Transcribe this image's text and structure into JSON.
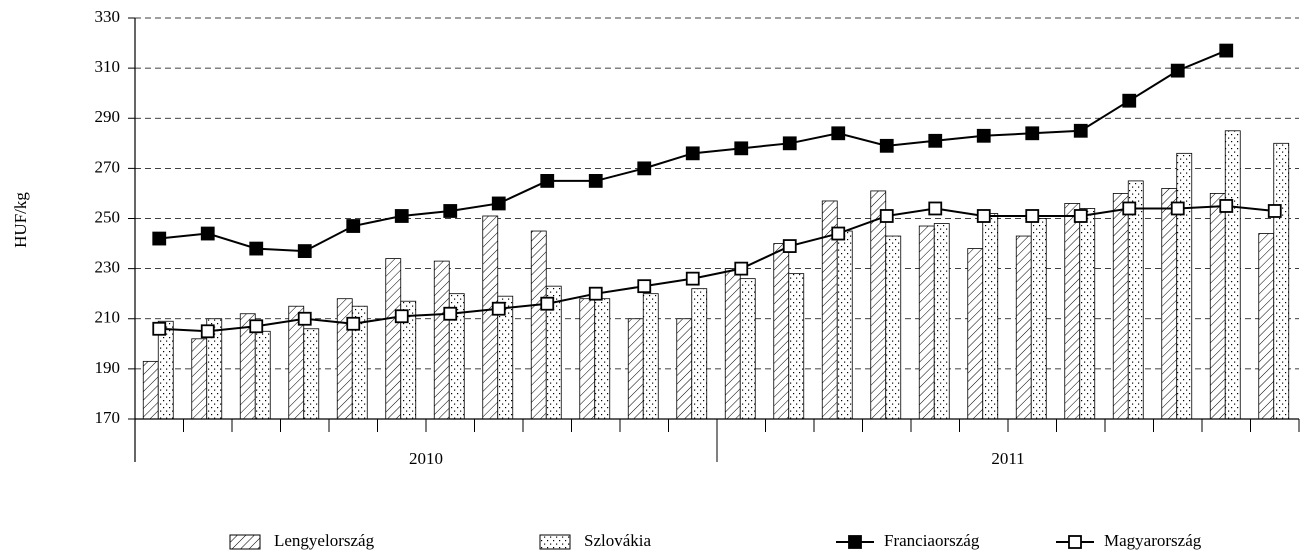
{
  "chart_data": {
    "type": "bar_line",
    "y_axis_label": "HUF/kg",
    "categories": [
      null,
      null,
      null,
      null,
      null,
      null,
      null,
      null,
      null,
      null,
      null,
      null,
      null,
      null,
      null,
      null,
      null,
      null,
      null,
      null,
      null,
      null,
      null,
      null
    ],
    "year_groups": [
      "2010",
      "2011"
    ],
    "ylim": [
      170,
      330
    ],
    "yticks": [
      170,
      190,
      210,
      230,
      250,
      270,
      290,
      310,
      330
    ],
    "grid": true,
    "legend": "bottom",
    "series": [
      {
        "name": "Lengyelország",
        "kind": "bar",
        "pattern": "hatch",
        "color": "#000000",
        "values": [
          193,
          202,
          212,
          215,
          218,
          234,
          233,
          251,
          245,
          218,
          210,
          210,
          230,
          240,
          257,
          261,
          247,
          238,
          243,
          256,
          260,
          262,
          260,
          244
        ]
      },
      {
        "name": "Szlovákia",
        "kind": "bar",
        "pattern": "dots",
        "color": "#000000",
        "values": [
          209,
          210,
          205,
          206,
          215,
          217,
          220,
          219,
          223,
          218,
          220,
          222,
          226,
          228,
          245,
          243,
          248,
          252,
          250,
          254,
          265,
          276,
          285,
          280
        ]
      },
      {
        "name": "Franciaország",
        "kind": "line",
        "marker": "filled",
        "color": "#000000",
        "values": [
          242,
          244,
          238,
          237,
          247,
          251,
          253,
          256,
          265,
          265,
          270,
          276,
          278,
          280,
          284,
          279,
          281,
          283,
          284,
          285,
          297,
          309,
          317,
          null
        ]
      },
      {
        "name": "Magyarország",
        "kind": "line",
        "marker": "open",
        "color": "#000000",
        "values": [
          206,
          205,
          207,
          210,
          208,
          211,
          212,
          214,
          216,
          220,
          223,
          226,
          230,
          239,
          244,
          251,
          254,
          251,
          251,
          251,
          254,
          254,
          255,
          253
        ]
      }
    ]
  }
}
